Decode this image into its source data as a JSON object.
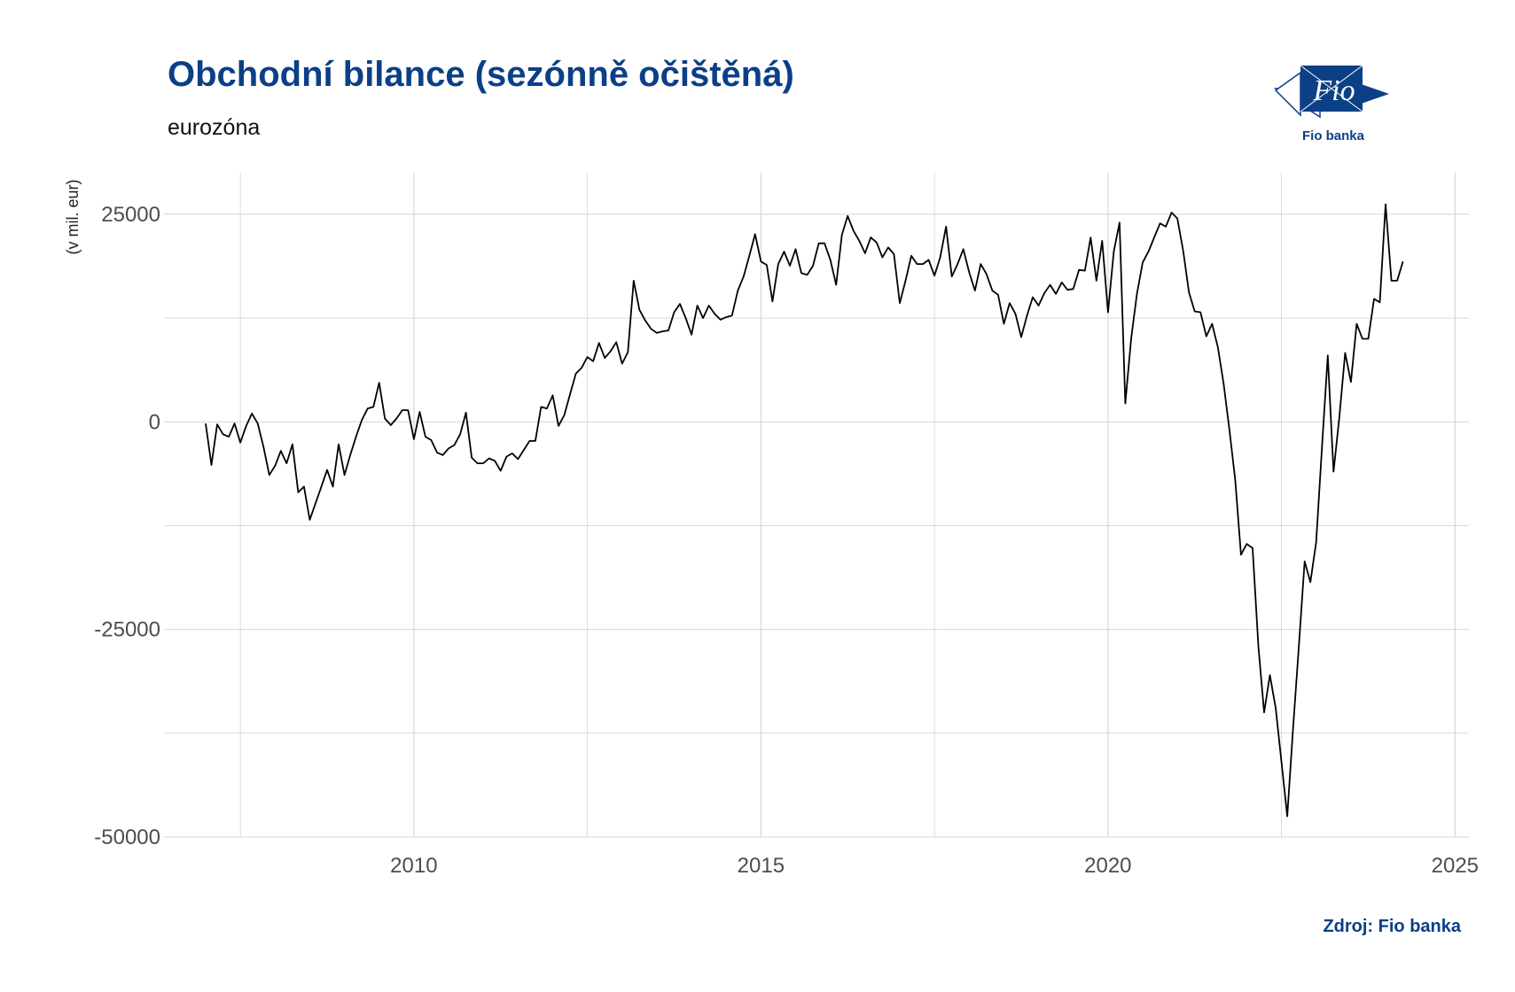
{
  "header": {
    "title": "Obchodní bilance (sezónně očištěná)",
    "subtitle": "eurozóna"
  },
  "logo": {
    "wordmark": "Fio",
    "name": "Fio banka"
  },
  "footer": {
    "source": "Zdroj: Fio banka"
  },
  "colors": {
    "title": "#0b3f86",
    "line": "#000000",
    "grid": "#d4d4d4"
  },
  "chart_data": {
    "type": "line",
    "title": "Obchodní bilance (sezónně očištěná)",
    "subtitle": "eurozóna",
    "xlabel": "",
    "ylabel": "(v mil. eur)",
    "xlim": [
      2006.4,
      2025.2
    ],
    "ylim": [
      -50000,
      30000
    ],
    "x_ticks": [
      2010,
      2015,
      2020,
      2025
    ],
    "y_ticks": [
      -50000,
      -25000,
      0,
      25000
    ],
    "x_tick_labels": [
      "2010",
      "2015",
      "2020",
      "2025"
    ],
    "y_tick_labels": [
      "-50000",
      "-25000",
      "0",
      "25000"
    ],
    "grid": true,
    "legend": "none",
    "series": [
      {
        "values_start": "2007-01",
        "frequency": "monthly",
        "values": [
          -200,
          -5200,
          -300,
          -1500,
          -1800,
          -200,
          -2500,
          -500,
          1000,
          -200,
          -3000,
          -6400,
          -5300,
          -3500,
          -5000,
          -2700,
          -8500,
          -7800,
          -11800,
          -9800,
          -7800,
          -5800,
          -7800,
          -2700,
          -6400,
          -4000,
          -1800,
          200,
          1600,
          1800,
          4700,
          400,
          -400,
          400,
          1400,
          1400,
          -2100,
          1200,
          -1800,
          -2200,
          -3700,
          -4000,
          -3200,
          -2800,
          -1500,
          1100,
          -4300,
          -5000,
          -5000,
          -4400,
          -4700,
          -5900,
          -4200,
          -3800,
          -4500,
          -3400,
          -2300,
          -2300,
          1800,
          1600,
          3200,
          -500,
          800,
          3300,
          5800,
          6500,
          7800,
          7300,
          9500,
          7700,
          8500,
          9600,
          7000,
          8400,
          17000,
          13500,
          12200,
          11200,
          10700,
          10900,
          11000,
          13200,
          14200,
          12500,
          10500,
          14000,
          12500,
          14000,
          13000,
          12300,
          12600,
          12800,
          15800,
          17500,
          20000,
          22600,
          19300,
          18900,
          14500,
          19000,
          20500,
          18800,
          20800,
          17900,
          17700,
          18800,
          21500,
          21500,
          19500,
          16500,
          22500,
          24800,
          23000,
          21800,
          20300,
          22200,
          21600,
          19800,
          21000,
          20200,
          14300,
          17000,
          20000,
          19000,
          19000,
          19500,
          17600,
          19800,
          23500,
          17500,
          19000,
          20800,
          18000,
          15800,
          19000,
          17800,
          15800,
          15300,
          11800,
          14300,
          13000,
          10200,
          12800,
          15000,
          14000,
          15500,
          16500,
          15400,
          16800,
          15900,
          16000,
          18300,
          18200,
          22200,
          17000,
          21800,
          13200,
          20500,
          24000,
          2200,
          10000,
          15400,
          19200,
          20500,
          22200,
          23900,
          23500,
          25200,
          24500,
          20600,
          15600,
          13300,
          13200,
          10300,
          11800,
          9000,
          4600,
          -1000,
          -7000,
          -16000,
          -14700,
          -15200,
          -27000,
          -35000,
          -30500,
          -34500,
          -41000,
          -47500,
          -37000,
          -27000,
          -16800,
          -19300,
          -14500,
          -3000,
          8000,
          -6000,
          500,
          8300,
          4800,
          11800,
          10000,
          10000,
          14800,
          14400,
          26200,
          17000,
          17000,
          19300
        ]
      }
    ]
  }
}
